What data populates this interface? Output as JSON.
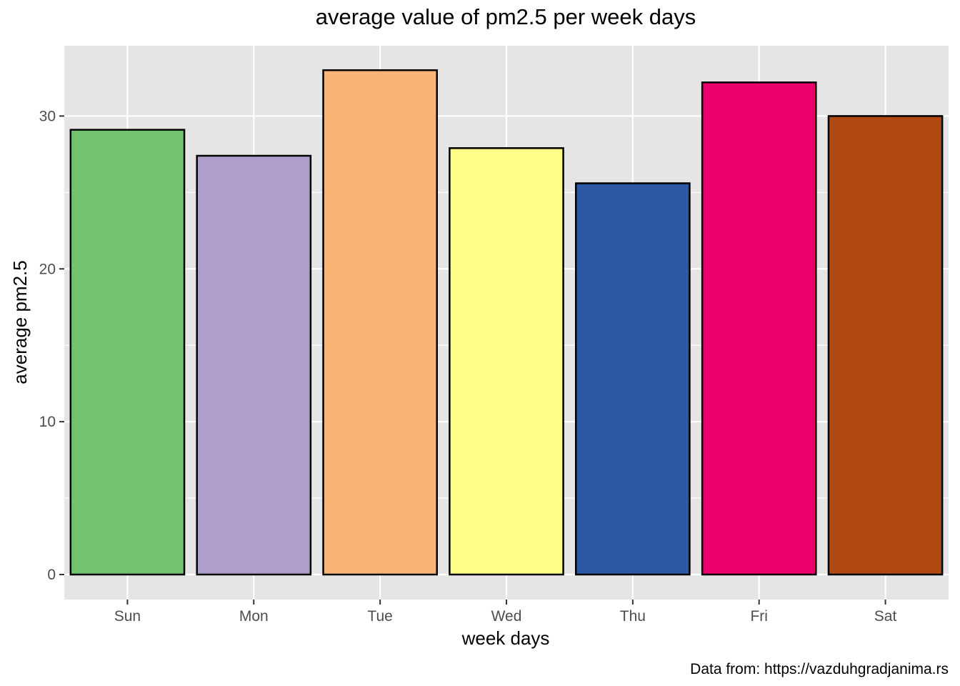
{
  "chart_data": {
    "type": "bar",
    "title": "average value of pm2.5 per week days",
    "xlabel": "week days",
    "ylabel": "average pm2.5",
    "caption": "Data from: https://vazduhgradjanima.rs",
    "categories": [
      "Sun",
      "Mon",
      "Tue",
      "Wed",
      "Thu",
      "Fri",
      "Sat"
    ],
    "values": [
      29.1,
      27.4,
      33.0,
      27.9,
      25.6,
      32.2,
      30.0
    ],
    "colors": [
      "#72c36e",
      "#af9dcb",
      "#f9b476",
      "#fefe88",
      "#2d58a3",
      "#ea006c",
      "#af4812"
    ],
    "bar_outline_color": "#000000",
    "panel_background": "#e5e5e5",
    "grid_color": "#ffffff",
    "ylim": [
      0,
      34.6
    ],
    "yticks": [
      0,
      10,
      20,
      30
    ],
    "ytick_labels": [
      "0",
      "10",
      "20",
      "30"
    ],
    "grid": true,
    "legend": "none"
  }
}
